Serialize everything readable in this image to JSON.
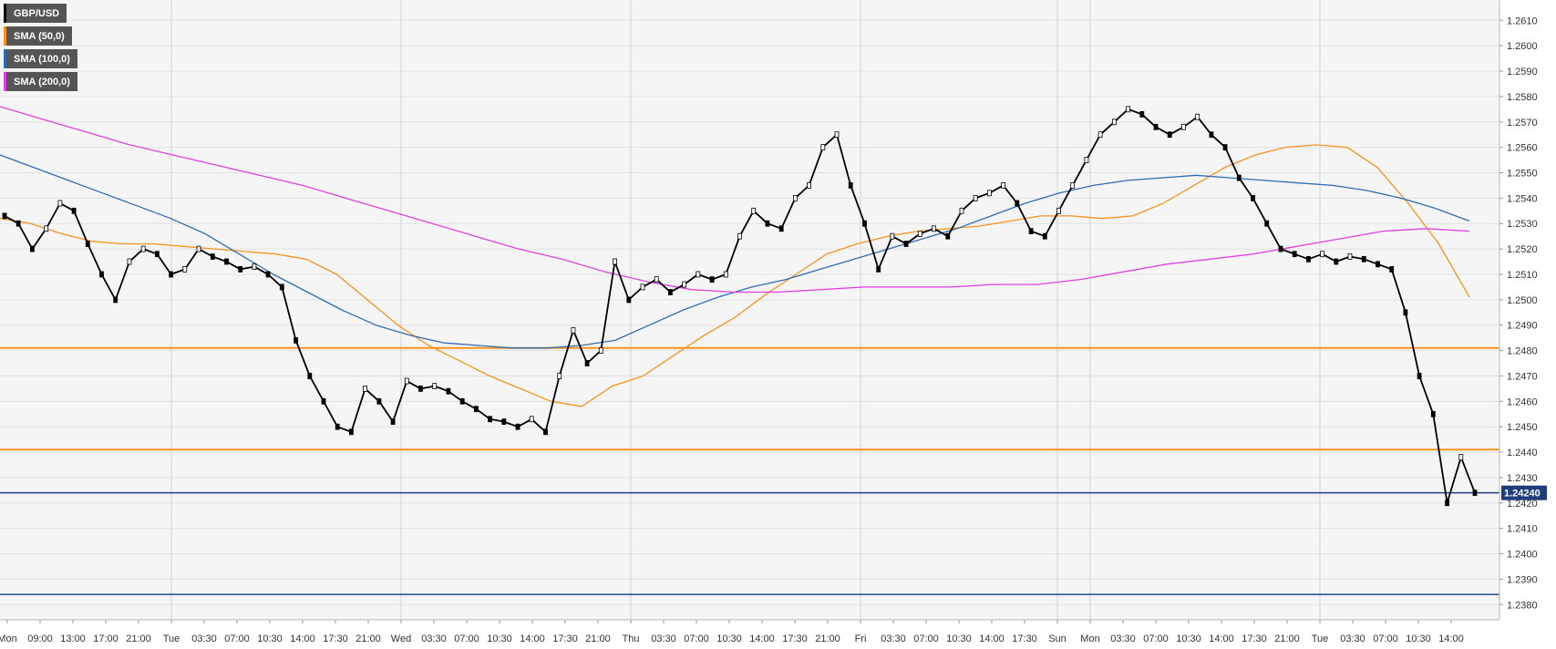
{
  "legend": [
    {
      "label": "GBP/USD",
      "color": "#000000"
    },
    {
      "label": "SMA (50,0)",
      "color": "#f7931e"
    },
    {
      "label": "SMA (100,0)",
      "color": "#2e6db4"
    },
    {
      "label": "SMA (200,0)",
      "color": "#e040e0"
    }
  ],
  "chart_data": {
    "type": "line",
    "title": "",
    "xlabel": "",
    "ylabel": "",
    "ylim": [
      1.2374,
      1.2618
    ],
    "y_ticks": [
      "1.2380",
      "1.2390",
      "1.2400",
      "1.2410",
      "1.2420",
      "1.2430",
      "1.2440",
      "1.2450",
      "1.2460",
      "1.2470",
      "1.2480",
      "1.2490",
      "1.2500",
      "1.2510",
      "1.2520",
      "1.2530",
      "1.2540",
      "1.2550",
      "1.2560",
      "1.2570",
      "1.2580",
      "1.2590",
      "1.2600",
      "1.2610"
    ],
    "x_tick_labels": [
      "Mon",
      "09:00",
      "13:00",
      "17:00",
      "21:00",
      "Tue",
      "03:30",
      "07:00",
      "10:30",
      "14:00",
      "17:30",
      "21:00",
      "Wed",
      "03:30",
      "07:00",
      "10:30",
      "14:00",
      "17:30",
      "21:00",
      "Thu",
      "03:30",
      "07:00",
      "10:30",
      "14:00",
      "17:30",
      "21:00",
      "Fri",
      "03:30",
      "07:00",
      "10:30",
      "14:00",
      "17:30",
      "Sun",
      "Mon",
      "03:30",
      "07:00",
      "10:30",
      "14:00",
      "17:30",
      "21:00",
      "Tue",
      "03:30",
      "07:00",
      "10:30",
      "14:00"
    ],
    "current_price": "1.24240",
    "horizontal_levels": [
      {
        "value": 1.2481,
        "color": "#f7931e"
      },
      {
        "value": 1.2441,
        "color": "#f7931e"
      },
      {
        "value": 1.2424,
        "color": "#1f3d7a"
      },
      {
        "value": 1.2384,
        "color": "#1f4e8c"
      }
    ],
    "series": [
      {
        "name": "GBP/USD",
        "color": "#000000",
        "values": [
          1.2533,
          1.253,
          1.252,
          1.2528,
          1.2538,
          1.2535,
          1.2522,
          1.251,
          1.25,
          1.2515,
          1.252,
          1.2518,
          1.251,
          1.2512,
          1.252,
          1.2517,
          1.2515,
          1.2512,
          1.2513,
          1.251,
          1.2505,
          1.2484,
          1.247,
          1.246,
          1.245,
          1.2448,
          1.2465,
          1.246,
          1.2452,
          1.2468,
          1.2465,
          1.2466,
          1.2464,
          1.246,
          1.2457,
          1.2453,
          1.2452,
          1.245,
          1.2453,
          1.2448,
          1.247,
          1.2488,
          1.2475,
          1.248,
          1.2515,
          1.25,
          1.2505,
          1.2508,
          1.2503,
          1.2506,
          1.251,
          1.2508,
          1.251,
          1.2525,
          1.2535,
          1.253,
          1.2528,
          1.254,
          1.2545,
          1.256,
          1.2565,
          1.2545,
          1.253,
          1.2512,
          1.2525,
          1.2522,
          1.2526,
          1.2528,
          1.2525,
          1.2535,
          1.254,
          1.2542,
          1.2545,
          1.2538,
          1.2527,
          1.2525,
          1.2535,
          1.2545,
          1.2555,
          1.2565,
          1.257,
          1.2575,
          1.2573,
          1.2568,
          1.2565,
          1.2568,
          1.2572,
          1.2565,
          1.256,
          1.2548,
          1.254,
          1.253,
          1.252,
          1.2518,
          1.2516,
          1.2518,
          1.2515,
          1.2517,
          1.2516,
          1.2514,
          1.2512,
          1.2495,
          1.247,
          1.2455,
          1.242,
          1.2438,
          1.2424
        ]
      },
      {
        "name": "SMA (50,0)",
        "color": "#f7931e",
        "values": [
          1.2532,
          1.253,
          1.2526,
          1.2523,
          1.2522,
          1.2522,
          1.2521,
          1.252,
          1.2519,
          1.2518,
          1.2516,
          1.251,
          1.25,
          1.249,
          1.2482,
          1.2476,
          1.247,
          1.2465,
          1.246,
          1.2458,
          1.2466,
          1.247,
          1.2478,
          1.2486,
          1.2493,
          1.2502,
          1.251,
          1.2518,
          1.2522,
          1.2525,
          1.2527,
          1.2528,
          1.2529,
          1.2531,
          1.2533,
          1.2533,
          1.2532,
          1.2533,
          1.2538,
          1.2545,
          1.2552,
          1.2557,
          1.256,
          1.2561,
          1.256,
          1.2552,
          1.2538,
          1.2522,
          1.2501
        ]
      },
      {
        "name": "SMA (100,0)",
        "color": "#2e6db4",
        "values": [
          1.2557,
          1.2552,
          1.2547,
          1.2542,
          1.2537,
          1.2532,
          1.2526,
          1.2518,
          1.251,
          1.2503,
          1.2496,
          1.249,
          1.2486,
          1.2483,
          1.2482,
          1.2481,
          1.2481,
          1.2482,
          1.2484,
          1.249,
          1.2496,
          1.2501,
          1.2505,
          1.2508,
          1.2512,
          1.2516,
          1.252,
          1.2524,
          1.2528,
          1.2533,
          1.2538,
          1.2542,
          1.2545,
          1.2547,
          1.2548,
          1.2549,
          1.2548,
          1.2547,
          1.2546,
          1.2545,
          1.2543,
          1.254,
          1.2536,
          1.2531
        ]
      },
      {
        "name": "SMA (200,0)",
        "color": "#e040e0",
        "values": [
          1.2576,
          1.2571,
          1.2566,
          1.2561,
          1.2557,
          1.2553,
          1.2549,
          1.2545,
          1.254,
          1.2535,
          1.253,
          1.2525,
          1.252,
          1.2516,
          1.2511,
          1.2507,
          1.2504,
          1.2503,
          1.2503,
          1.2504,
          1.2505,
          1.2505,
          1.2505,
          1.2506,
          1.2506,
          1.2508,
          1.2511,
          1.2514,
          1.2516,
          1.2518,
          1.2521,
          1.2524,
          1.2527,
          1.2528,
          1.2527
        ]
      }
    ]
  }
}
